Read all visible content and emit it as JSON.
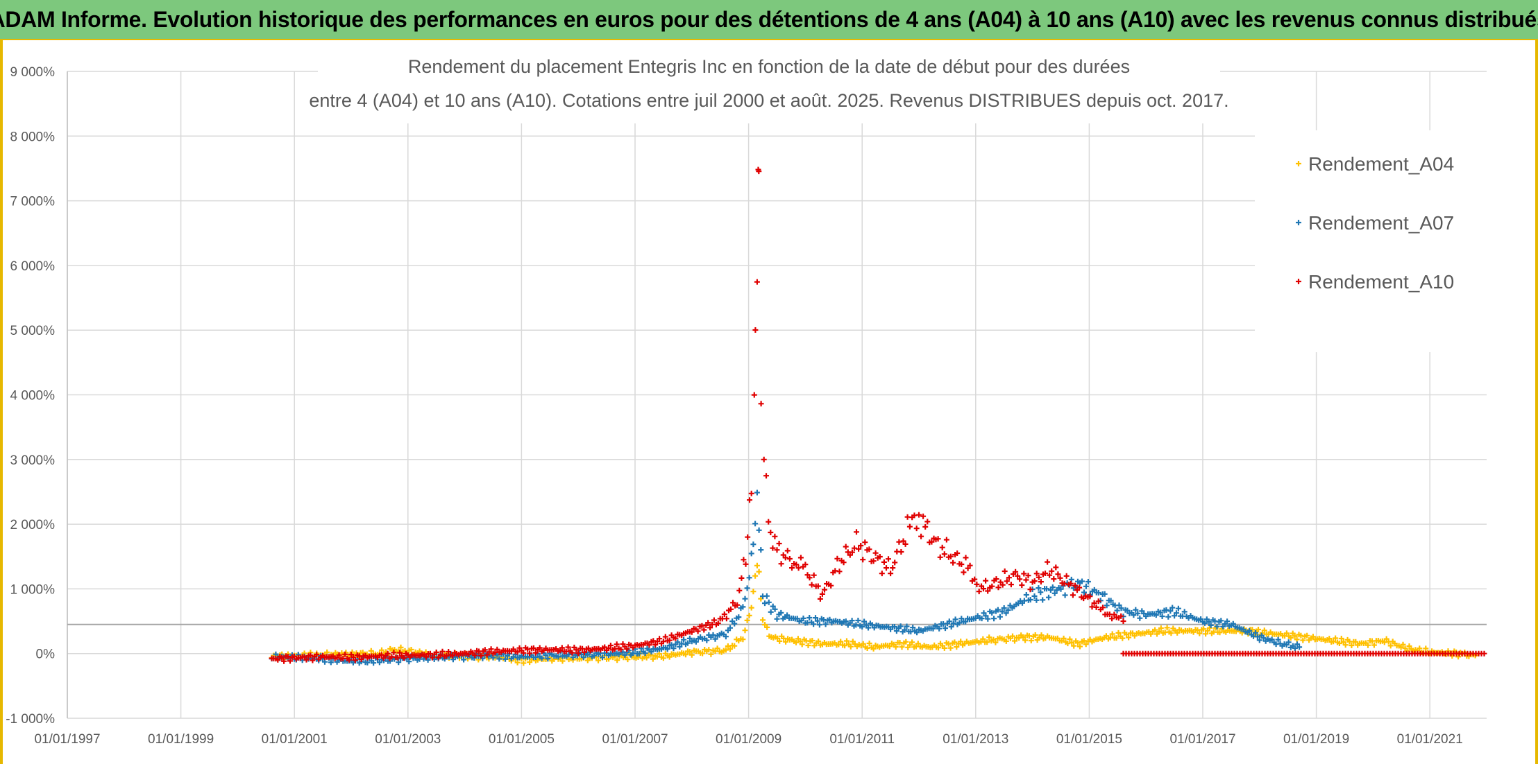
{
  "banner": {
    "title": "ADAM Informe. Evolution historique des performances en euros pour des détentions de 4 ans (A04) à 10 ans (A10) avec les revenus connus distribués"
  },
  "chart_data": {
    "type": "scatter",
    "title_line1": "Rendement du placement Entegris Inc en fonction de la date de début pour des durées",
    "title_line2": "entre 4 (A04) et 10 ans (A10). Cotations entre juil 2000 et août. 2025. Revenus DISTRIBUES depuis oct. 2017.",
    "xlim": [
      1997.0,
      2022.0
    ],
    "ylim": [
      -1000,
      9000
    ],
    "x_ticks": [
      "01/01/1997",
      "01/01/1999",
      "01/01/2001",
      "01/01/2003",
      "01/01/2005",
      "01/01/2007",
      "01/01/2009",
      "01/01/2011",
      "01/01/2013",
      "01/01/2015",
      "01/01/2017",
      "01/01/2019",
      "01/01/2021"
    ],
    "y_ticks": [
      "-1 000%",
      "0%",
      "1 000%",
      "2 000%",
      "3 000%",
      "4 000%",
      "5 000%",
      "6 000%",
      "7 000%",
      "8 000%",
      "9 000%"
    ],
    "y_tick_values": [
      -1000,
      0,
      1000,
      2000,
      3000,
      4000,
      5000,
      6000,
      7000,
      8000,
      9000
    ],
    "reference_line_y": 450,
    "grid": true,
    "legend_position": "top-right",
    "series": [
      {
        "name": "Rendement_A04",
        "color": "#ffc000",
        "points": [
          [
            2000.6,
            -50
          ],
          [
            2001.5,
            -20
          ],
          [
            2002.5,
            0
          ],
          [
            2002.8,
            60
          ],
          [
            2003.5,
            -30
          ],
          [
            2004.5,
            -50
          ],
          [
            2005.0,
            -100
          ],
          [
            2005.5,
            -80
          ],
          [
            2006.5,
            -60
          ],
          [
            2007.5,
            -40
          ],
          [
            2008.0,
            20
          ],
          [
            2008.6,
            50
          ],
          [
            2008.9,
            250
          ],
          [
            2009.05,
            700
          ],
          [
            2009.15,
            1500
          ],
          [
            2009.25,
            500
          ],
          [
            2009.4,
            250
          ],
          [
            2009.8,
            200
          ],
          [
            2010.3,
            150
          ],
          [
            2010.8,
            150
          ],
          [
            2011.2,
            100
          ],
          [
            2011.7,
            150
          ],
          [
            2012.2,
            100
          ],
          [
            2012.7,
            150
          ],
          [
            2013.2,
            200
          ],
          [
            2013.8,
            250
          ],
          [
            2014.3,
            250
          ],
          [
            2014.8,
            150
          ],
          [
            2015.3,
            250
          ],
          [
            2015.8,
            300
          ],
          [
            2016.3,
            350
          ],
          [
            2016.8,
            350
          ],
          [
            2017.3,
            350
          ],
          [
            2017.8,
            350
          ],
          [
            2018.3,
            300
          ],
          [
            2018.8,
            250
          ],
          [
            2019.3,
            200
          ],
          [
            2019.8,
            150
          ],
          [
            2020.2,
            200
          ],
          [
            2020.6,
            80
          ],
          [
            2021.0,
            20
          ],
          [
            2021.5,
            0
          ],
          [
            2021.8,
            -30
          ]
        ]
      },
      {
        "name": "Rendement_A07",
        "color": "#1f77b4",
        "points": [
          [
            2000.6,
            -50
          ],
          [
            2001.5,
            -80
          ],
          [
            2002.0,
            -120
          ],
          [
            2002.5,
            -100
          ],
          [
            2003.5,
            -60
          ],
          [
            2004.5,
            -30
          ],
          [
            2005.0,
            -50
          ],
          [
            2005.5,
            -30
          ],
          [
            2006.5,
            -10
          ],
          [
            2007.0,
            20
          ],
          [
            2007.5,
            80
          ],
          [
            2008.0,
            200
          ],
          [
            2008.6,
            300
          ],
          [
            2008.9,
            700
          ],
          [
            2009.05,
            1400
          ],
          [
            2009.15,
            2500
          ],
          [
            2009.25,
            900
          ],
          [
            2009.5,
            600
          ],
          [
            2010.0,
            500
          ],
          [
            2010.5,
            500
          ],
          [
            2011.0,
            450
          ],
          [
            2011.5,
            400
          ],
          [
            2012.0,
            350
          ],
          [
            2012.5,
            450
          ],
          [
            2013.0,
            550
          ],
          [
            2013.5,
            650
          ],
          [
            2014.0,
            900
          ],
          [
            2014.5,
            1000
          ],
          [
            2014.8,
            1100
          ],
          [
            2015.2,
            900
          ],
          [
            2015.6,
            650
          ],
          [
            2016.0,
            600
          ],
          [
            2016.5,
            650
          ],
          [
            2017.0,
            500
          ],
          [
            2017.5,
            450
          ],
          [
            2018.0,
            250
          ],
          [
            2018.4,
            150
          ],
          [
            2018.7,
            100
          ]
        ]
      },
      {
        "name": "Rendement_A10",
        "color": "#e00000",
        "points": [
          [
            2000.6,
            -80
          ],
          [
            2001.5,
            -50
          ],
          [
            2002.0,
            -60
          ],
          [
            2002.5,
            -40
          ],
          [
            2003.0,
            -30
          ],
          [
            2003.5,
            -20
          ],
          [
            2004.0,
            0
          ],
          [
            2004.5,
            30
          ],
          [
            2005.0,
            50
          ],
          [
            2005.5,
            60
          ],
          [
            2006.0,
            50
          ],
          [
            2006.5,
            80
          ],
          [
            2007.0,
            120
          ],
          [
            2007.5,
            200
          ],
          [
            2008.0,
            350
          ],
          [
            2008.5,
            500
          ],
          [
            2008.8,
            800
          ],
          [
            2008.95,
            1500
          ],
          [
            2009.05,
            2500
          ],
          [
            2009.1,
            4000
          ],
          [
            2009.12,
            5000
          ],
          [
            2009.15,
            6000
          ],
          [
            2009.17,
            7000
          ],
          [
            2009.18,
            8000
          ],
          [
            2009.22,
            4000
          ],
          [
            2009.27,
            3000
          ],
          [
            2009.35,
            2000
          ],
          [
            2009.5,
            1600
          ],
          [
            2009.8,
            1400
          ],
          [
            2010.0,
            1300
          ],
          [
            2010.3,
            900
          ],
          [
            2010.6,
            1400
          ],
          [
            2010.9,
            1700
          ],
          [
            2011.2,
            1500
          ],
          [
            2011.5,
            1300
          ],
          [
            2011.8,
            1900
          ],
          [
            2012.0,
            2100
          ],
          [
            2012.3,
            1700
          ],
          [
            2012.6,
            1500
          ],
          [
            2012.9,
            1300
          ],
          [
            2013.1,
            1000
          ],
          [
            2013.4,
            1100
          ],
          [
            2013.7,
            1200
          ],
          [
            2014.0,
            1100
          ],
          [
            2014.3,
            1300
          ],
          [
            2014.6,
            1100
          ],
          [
            2014.9,
            900
          ],
          [
            2015.2,
            700
          ],
          [
            2015.4,
            600
          ],
          [
            2015.6,
            500
          ]
        ],
        "flat_segment": {
          "x_from": 2015.6,
          "x_to": 2022.0,
          "y": 0
        }
      }
    ]
  }
}
